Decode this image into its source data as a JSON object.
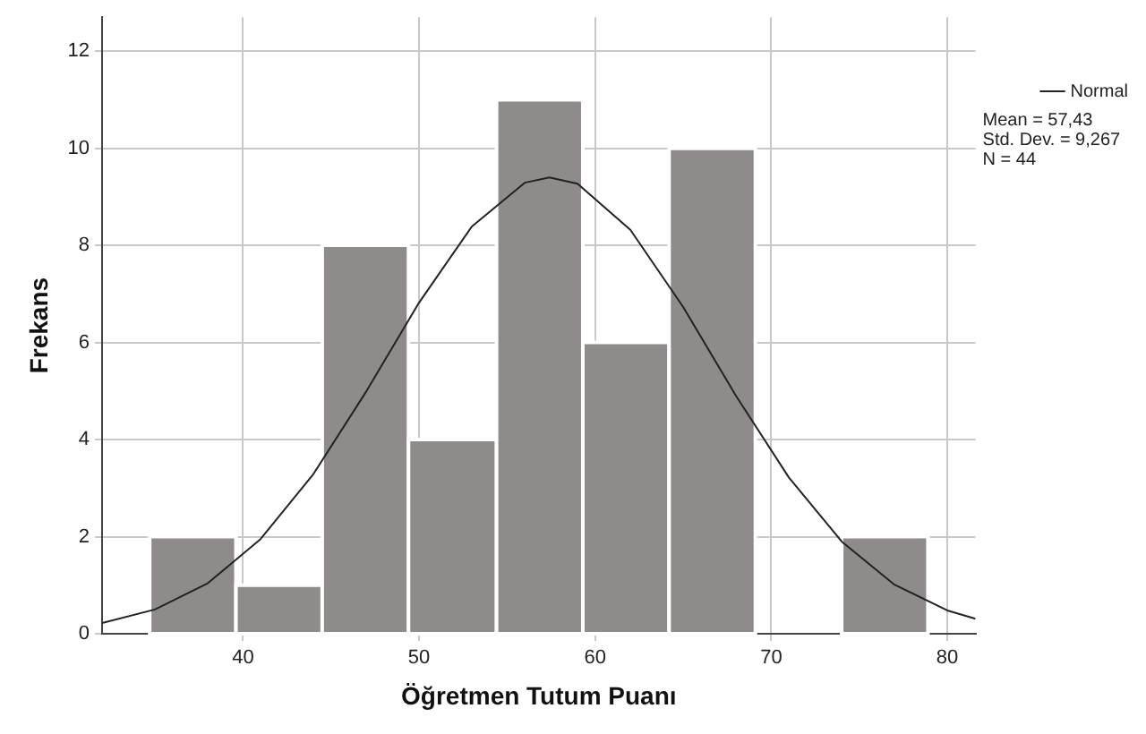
{
  "chart_data": {
    "type": "histogram",
    "xlabel": "Öğretmen Tutum Puanı",
    "ylabel": "Frekans",
    "bins": [
      34.7,
      39.6,
      44.5,
      49.4,
      54.4,
      59.3,
      64.2,
      69.1,
      74.0,
      78.9
    ],
    "values": [
      2,
      1,
      8,
      4,
      11,
      6,
      10,
      0,
      2
    ],
    "color": "#8f8b8a",
    "series": [
      {
        "name": "Normal",
        "type": "line",
        "color": "#222222",
        "x": [
          32,
          35,
          38,
          41,
          44,
          47,
          50,
          53,
          56,
          57.4,
          59,
          62,
          65,
          68,
          71,
          74,
          77,
          80,
          81.6
        ],
        "values": [
          0.22,
          0.5,
          1.04,
          1.95,
          3.29,
          4.99,
          6.82,
          8.39,
          9.29,
          9.4,
          9.27,
          8.32,
          6.73,
          4.9,
          3.22,
          1.9,
          1.01,
          0.48,
          0.31
        ]
      }
    ],
    "xlim": [
      32,
      81.6
    ],
    "xticks": [
      40,
      50,
      60,
      70,
      80
    ],
    "ylim": [
      0,
      12.7
    ],
    "yticks": [
      0,
      2,
      4,
      6,
      8,
      10,
      12
    ],
    "grid": true,
    "legend": "top right",
    "marker": "none",
    "annotations": [
      "Mean = 57,43",
      "Std. Dev. = 9,267",
      "N = 44"
    ]
  }
}
